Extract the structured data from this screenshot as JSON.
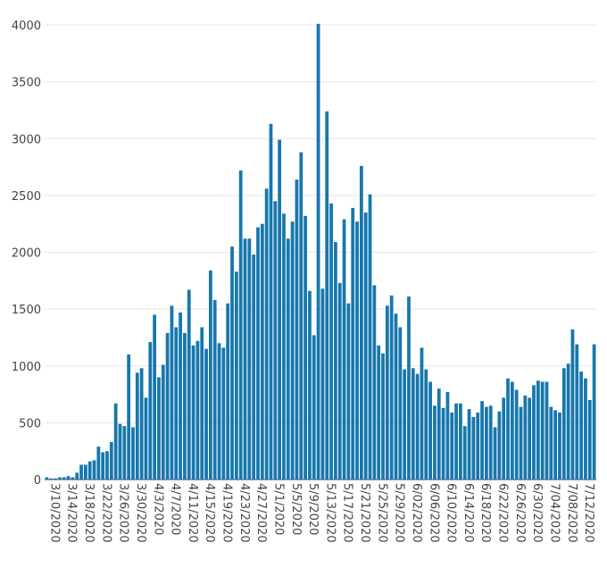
{
  "chart_data": {
    "type": "bar",
    "title": "",
    "xlabel": "",
    "ylabel": "",
    "ylim": [
      0,
      4000
    ],
    "y_ticks": [
      0,
      500,
      1000,
      1500,
      2000,
      2500,
      3000,
      3500,
      4000
    ],
    "grid": true,
    "legend": "none",
    "bar_color": "#1777ad",
    "x_tick_labels": [
      "3/10/2020",
      "3/14/2020",
      "3/18/2020",
      "3/22/2020",
      "3/26/2020",
      "3/30/2020",
      "4/3/2020",
      "4/7/2020",
      "4/11/2020",
      "4/15/2020",
      "4/19/2020",
      "4/23/2020",
      "4/27/2020",
      "5/1/2020",
      "5/5/2020",
      "5/9/2020",
      "5/13/2020",
      "5/17/2020",
      "5/21/2020",
      "5/25/2020",
      "5/29/2020",
      "6/02/2020",
      "6/06/2020",
      "6/10/2020",
      "6/14/2020",
      "6/18/2020",
      "6/22/2020",
      "6/26/2020",
      "6/30/2020",
      "7/04/2020",
      "7/08/2020",
      "7/12/2020"
    ],
    "x_tick_every": 4,
    "values": [
      20,
      10,
      10,
      20,
      20,
      30,
      20,
      60,
      130,
      130,
      160,
      170,
      290,
      240,
      250,
      330,
      670,
      490,
      470,
      1100,
      460,
      940,
      980,
      720,
      1210,
      1450,
      900,
      1010,
      1290,
      1530,
      1340,
      1470,
      1290,
      1670,
      1180,
      1220,
      1340,
      1150,
      1840,
      1580,
      1200,
      1160,
      1550,
      2050,
      1830,
      2720,
      2120,
      2120,
      1980,
      2220,
      2250,
      2560,
      3130,
      2450,
      2990,
      2340,
      2120,
      2270,
      2640,
      2880,
      2320,
      1660,
      1270,
      4010,
      1680,
      3240,
      2430,
      2090,
      1730,
      2290,
      1550,
      2390,
      2270,
      2760,
      2350,
      2510,
      1710,
      1180,
      1110,
      1530,
      1620,
      1460,
      1340,
      970,
      1610,
      980,
      930,
      1160,
      970,
      860,
      650,
      800,
      630,
      770,
      590,
      670,
      670,
      470,
      620,
      550,
      590,
      690,
      640,
      650,
      460,
      600,
      720,
      890,
      860,
      790,
      640,
      740,
      720,
      830,
      870,
      860,
      860,
      640,
      610,
      590,
      980,
      1020,
      1320,
      1190,
      950,
      890,
      700,
      1190
    ]
  }
}
